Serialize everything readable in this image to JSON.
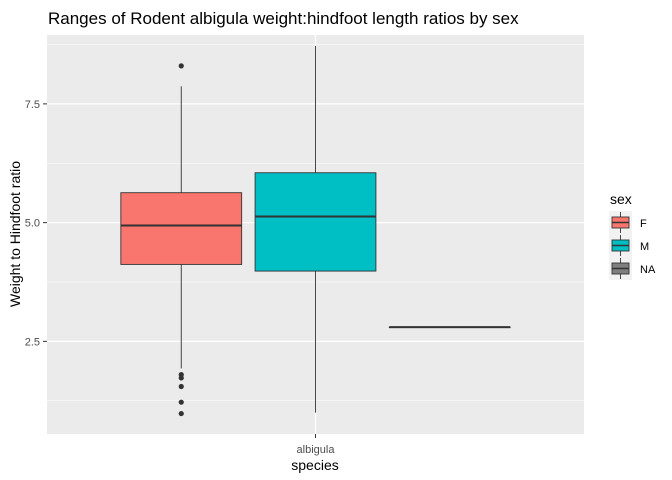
{
  "chart_data": {
    "type": "boxplot",
    "title": "Ranges of Rodent albigula weight:hindfoot length ratios by sex",
    "xlabel": "species",
    "ylabel": "Weight to Hindfoot ratio",
    "categories": [
      "albigula"
    ],
    "y_ticks": [
      "2.5",
      "5.0",
      "7.5"
    ],
    "ylim": [
      0.55,
      8.95
    ],
    "grid": true,
    "legend": {
      "title": "sex",
      "position": "right"
    },
    "series": [
      {
        "name": "F",
        "color": "#F8766D",
        "stats": {
          "min": 1.93,
          "q1": 4.12,
          "median": 4.94,
          "q3": 5.63,
          "max": 7.87
        },
        "outliers": [
          8.3,
          1.8,
          1.73,
          1.55,
          1.22,
          0.98
        ]
      },
      {
        "name": "M",
        "color": "#00BFC4",
        "stats": {
          "min": 1.0,
          "q1": 3.98,
          "median": 5.13,
          "q3": 6.05,
          "max": 8.72
        },
        "outliers": []
      },
      {
        "name": "NA",
        "color": "#7F7F7F",
        "stats": {
          "min": 2.8,
          "q1": 2.8,
          "median": 2.8,
          "q3": 2.8,
          "max": 2.8
        },
        "outliers": []
      }
    ]
  }
}
